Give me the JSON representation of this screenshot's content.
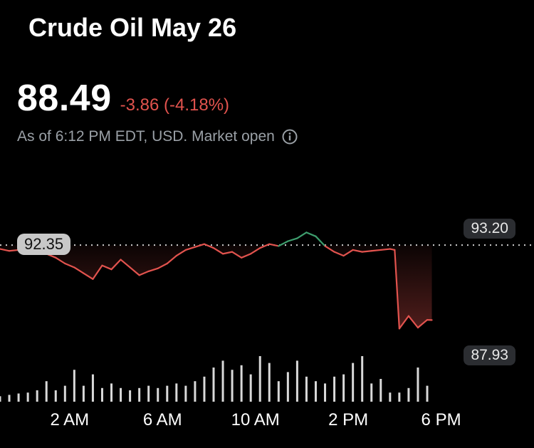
{
  "header": {
    "title": "Crude Oil May 26",
    "price": "88.49",
    "change": "-3.86 (-4.18%)",
    "as_of": "As of 6:12 PM EDT, USD. Market open",
    "info_icon": "info-icon"
  },
  "colors": {
    "up": "#3e9e6e",
    "down": "#e2534e",
    "text": "#ffffff",
    "muted": "#9aa0a6",
    "volume": "#d9d9d9"
  },
  "chart_data": {
    "type": "line",
    "previous_close": 92.35,
    "previous_close_label": "92.35",
    "high_label": "93.20",
    "low_label": "87.93",
    "ylim": [
      87.0,
      93.6
    ],
    "x_tick_labels": [
      "2 AM",
      "6 AM",
      "10 AM",
      "2 PM",
      "6 PM"
    ],
    "x_ticks": [
      2,
      6,
      10,
      14,
      18
    ],
    "xlim": [
      -1.0,
      22.0
    ],
    "series": [
      {
        "x": [
          -1.0,
          -0.6,
          -0.2,
          0.2,
          0.6,
          1.0,
          1.4,
          1.8,
          2.2,
          2.6,
          3.0,
          3.4,
          3.8,
          4.2,
          4.6,
          5.0,
          5.4,
          5.8,
          6.2,
          6.6,
          7.0,
          7.4,
          7.8,
          8.2,
          8.6,
          9.0,
          9.4,
          9.8,
          10.2,
          10.6,
          11.0,
          11.4,
          11.8,
          12.2,
          12.6,
          13.0,
          13.4,
          13.8,
          14.2,
          14.6,
          15.0,
          15.4,
          15.8,
          16.0,
          16.2,
          16.6,
          17.0,
          17.4,
          17.6
        ],
        "y": [
          92.15,
          92.05,
          92.1,
          92.2,
          92.3,
          91.9,
          91.7,
          91.4,
          91.2,
          90.9,
          90.6,
          91.3,
          91.1,
          91.6,
          91.2,
          90.8,
          91.0,
          91.15,
          91.4,
          91.8,
          92.1,
          92.25,
          92.4,
          92.2,
          91.9,
          92.0,
          91.7,
          91.9,
          92.2,
          92.4,
          92.3,
          92.55,
          92.7,
          93.0,
          92.8,
          92.3,
          92.0,
          91.8,
          92.1,
          92.0,
          92.05,
          92.1,
          92.15,
          92.1,
          88.05,
          88.7,
          88.1,
          88.5,
          88.49
        ]
      }
    ],
    "volume": {
      "x": [
        -1.0,
        -0.6,
        -0.2,
        0.2,
        0.6,
        1.0,
        1.4,
        1.8,
        2.2,
        2.6,
        3.0,
        3.4,
        3.8,
        4.2,
        4.6,
        5.0,
        5.4,
        5.8,
        6.2,
        6.6,
        7.0,
        7.4,
        7.8,
        8.2,
        8.6,
        9.0,
        9.4,
        9.8,
        10.2,
        10.6,
        11.0,
        11.4,
        11.8,
        12.2,
        12.6,
        13.0,
        13.4,
        13.8,
        14.2,
        14.6,
        15.0,
        15.4,
        15.8,
        16.2,
        16.6,
        17.0,
        17.4
      ],
      "values": [
        0.12,
        0.15,
        0.18,
        0.2,
        0.25,
        0.45,
        0.25,
        0.35,
        0.7,
        0.35,
        0.6,
        0.3,
        0.4,
        0.3,
        0.25,
        0.3,
        0.35,
        0.3,
        0.35,
        0.4,
        0.35,
        0.45,
        0.55,
        0.75,
        0.9,
        0.7,
        0.8,
        0.6,
        1.0,
        0.85,
        0.45,
        0.65,
        0.9,
        0.55,
        0.45,
        0.4,
        0.55,
        0.6,
        0.85,
        1.0,
        0.4,
        0.5,
        0.2,
        0.2,
        0.3,
        0.75,
        0.35
      ]
    }
  }
}
